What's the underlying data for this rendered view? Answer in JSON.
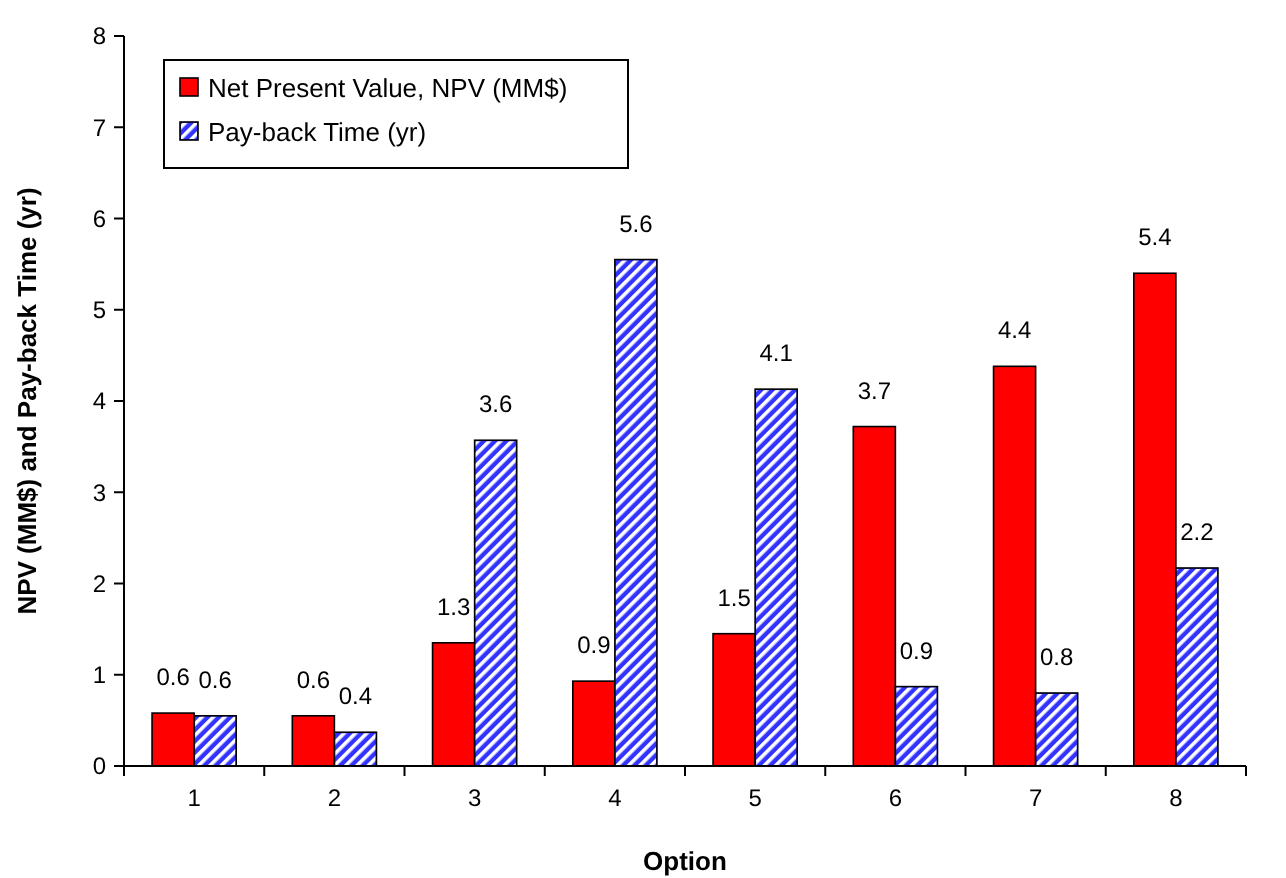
{
  "chart_data": {
    "type": "bar",
    "xlabel": "Option",
    "ylabel": "NPV (MM$) and Pay-back Time (yr)",
    "categories": [
      "1",
      "2",
      "3",
      "4",
      "5",
      "6",
      "7",
      "8"
    ],
    "series": [
      {
        "name": "Net Present Value, NPV (MM$)",
        "color": "#ff0000",
        "values": [
          0.58,
          0.55,
          1.35,
          0.93,
          1.45,
          3.72,
          4.38,
          5.4
        ],
        "value_labels": [
          "0.6",
          "0.6",
          "1.3",
          "0.9",
          "1.5",
          "3.7",
          "4.4",
          "5.4"
        ]
      },
      {
        "name": "Pay-back Time (yr)",
        "color": "#3333ff",
        "values": [
          0.55,
          0.37,
          3.57,
          5.55,
          4.13,
          0.87,
          0.8,
          2.17
        ],
        "value_labels": [
          "0.6",
          "0.4",
          "3.6",
          "5.6",
          "4.1",
          "0.9",
          "0.8",
          "2.2"
        ]
      }
    ],
    "ylim": [
      0,
      8
    ],
    "yticks": [
      0,
      1,
      2,
      3,
      4,
      5,
      6,
      7,
      8
    ],
    "grid": false,
    "legend": "top left"
  }
}
